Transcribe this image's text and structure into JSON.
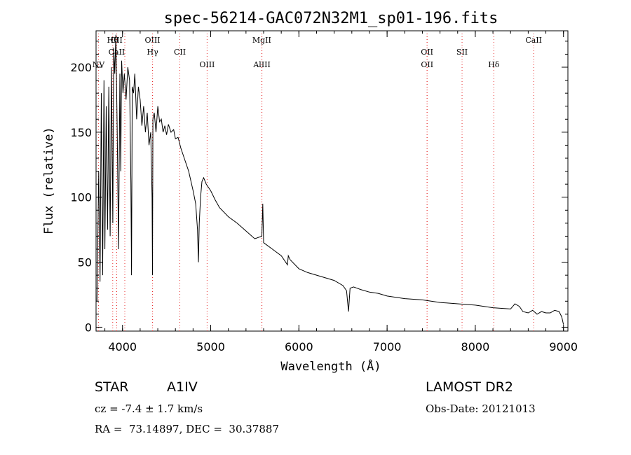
{
  "chart_data": {
    "type": "line",
    "title": "spec-56214-GAC072N32M1_sp01-196.fits",
    "xlabel": "Wavelength (Å)",
    "ylabel": "Flux (relative)",
    "xlim": [
      3700,
      9050
    ],
    "ylim": [
      -3,
      228
    ],
    "x_ticks": [
      4000,
      5000,
      6000,
      7000,
      8000,
      9000
    ],
    "y_ticks": [
      0,
      50,
      100,
      150,
      200
    ],
    "grid": false,
    "line_color": "#000000",
    "marker_color": "#e83030",
    "series": [
      {
        "name": "flux",
        "x": [
          3710,
          3730,
          3745,
          3760,
          3775,
          3790,
          3800,
          3815,
          3830,
          3845,
          3860,
          3875,
          3890,
          3900,
          3912,
          3925,
          3940,
          3955,
          3970,
          3980,
          3990,
          4005,
          4020,
          4040,
          4060,
          4080,
          4095,
          4102,
          4110,
          4125,
          4140,
          4160,
          4180,
          4200,
          4220,
          4240,
          4260,
          4280,
          4300,
          4320,
          4335,
          4340,
          4345,
          4360,
          4380,
          4400,
          4420,
          4440,
          4460,
          4480,
          4500,
          4520,
          4550,
          4580,
          4600,
          4630,
          4660,
          4700,
          4750,
          4800,
          4830,
          4850,
          4861,
          4870,
          4885,
          4900,
          4920,
          4950,
          5000,
          5050,
          5100,
          5200,
          5300,
          5400,
          5500,
          5580,
          5590,
          5600,
          5700,
          5800,
          5870,
          5880,
          5900,
          6000,
          6100,
          6200,
          6300,
          6400,
          6500,
          6540,
          6563,
          6580,
          6620,
          6700,
          6800,
          6900,
          7000,
          7200,
          7400,
          7600,
          7800,
          8000,
          8200,
          8400,
          8450,
          8500,
          8540,
          8600,
          8650,
          8700,
          8750,
          8800,
          8850,
          8900,
          8950,
          8980,
          9000
        ],
        "y": [
          20,
          120,
          35,
          180,
          40,
          190,
          60,
          170,
          75,
          185,
          70,
          200,
          80,
          215,
          195,
          225,
          150,
          60,
          195,
          120,
          205,
          180,
          195,
          175,
          200,
          190,
          110,
          40,
          185,
          180,
          195,
          160,
          185,
          175,
          155,
          170,
          150,
          165,
          140,
          150,
          100,
          40,
          160,
          165,
          150,
          170,
          158,
          160,
          150,
          155,
          148,
          156,
          150,
          152,
          145,
          146,
          138,
          130,
          120,
          105,
          95,
          75,
          50,
          80,
          100,
          112,
          115,
          110,
          105,
          98,
          92,
          85,
          80,
          74,
          68,
          70,
          95,
          65,
          60,
          55,
          48,
          55,
          52,
          45,
          42,
          40,
          38,
          36,
          32,
          28,
          12,
          30,
          31,
          29,
          27,
          26,
          24,
          22,
          21,
          19,
          18,
          17,
          15,
          14,
          18,
          16,
          12,
          11,
          13,
          10,
          12,
          11,
          11,
          13,
          12,
          8,
          2
        ]
      }
    ],
    "line_markers": [
      {
        "x": 3727,
        "label": "NV",
        "row": 3
      },
      {
        "x": 3889,
        "label": "Hθ",
        "row": 1
      },
      {
        "x": 3933,
        "label": "CII",
        "row": 1
      },
      {
        "x": 3934,
        "label": "CaII",
        "row": 2
      },
      {
        "x": 4026,
        "label": "",
        "row": 0
      },
      {
        "x": 4340,
        "label": "OIII",
        "row": 1
      },
      {
        "x": 4341,
        "label": "Hγ",
        "row": 2
      },
      {
        "x": 4650,
        "label": "CII",
        "row": 2
      },
      {
        "x": 4959,
        "label": "OIII",
        "row": 3
      },
      {
        "x": 5579,
        "label": "MgII",
        "row": 1
      },
      {
        "x": 5581,
        "label": "AlIII",
        "row": 3
      },
      {
        "x": 7453,
        "label": "OII",
        "row": 2
      },
      {
        "x": 7454,
        "label": "OII",
        "row": 3
      },
      {
        "x": 7850,
        "label": "SII",
        "row": 2
      },
      {
        "x": 8210,
        "label": "Hδ",
        "row": 3
      },
      {
        "x": 8662,
        "label": "CaII",
        "row": 1
      }
    ]
  },
  "info": {
    "object_class": "STAR",
    "subclass": "A1IV",
    "survey": "LAMOST DR2",
    "redshift": "cz = -7.4 ± 1.7 km/s",
    "obs_date": "Obs-Date: 20121013",
    "coords": "RA =  73.14897, DEC =  30.37887"
  }
}
